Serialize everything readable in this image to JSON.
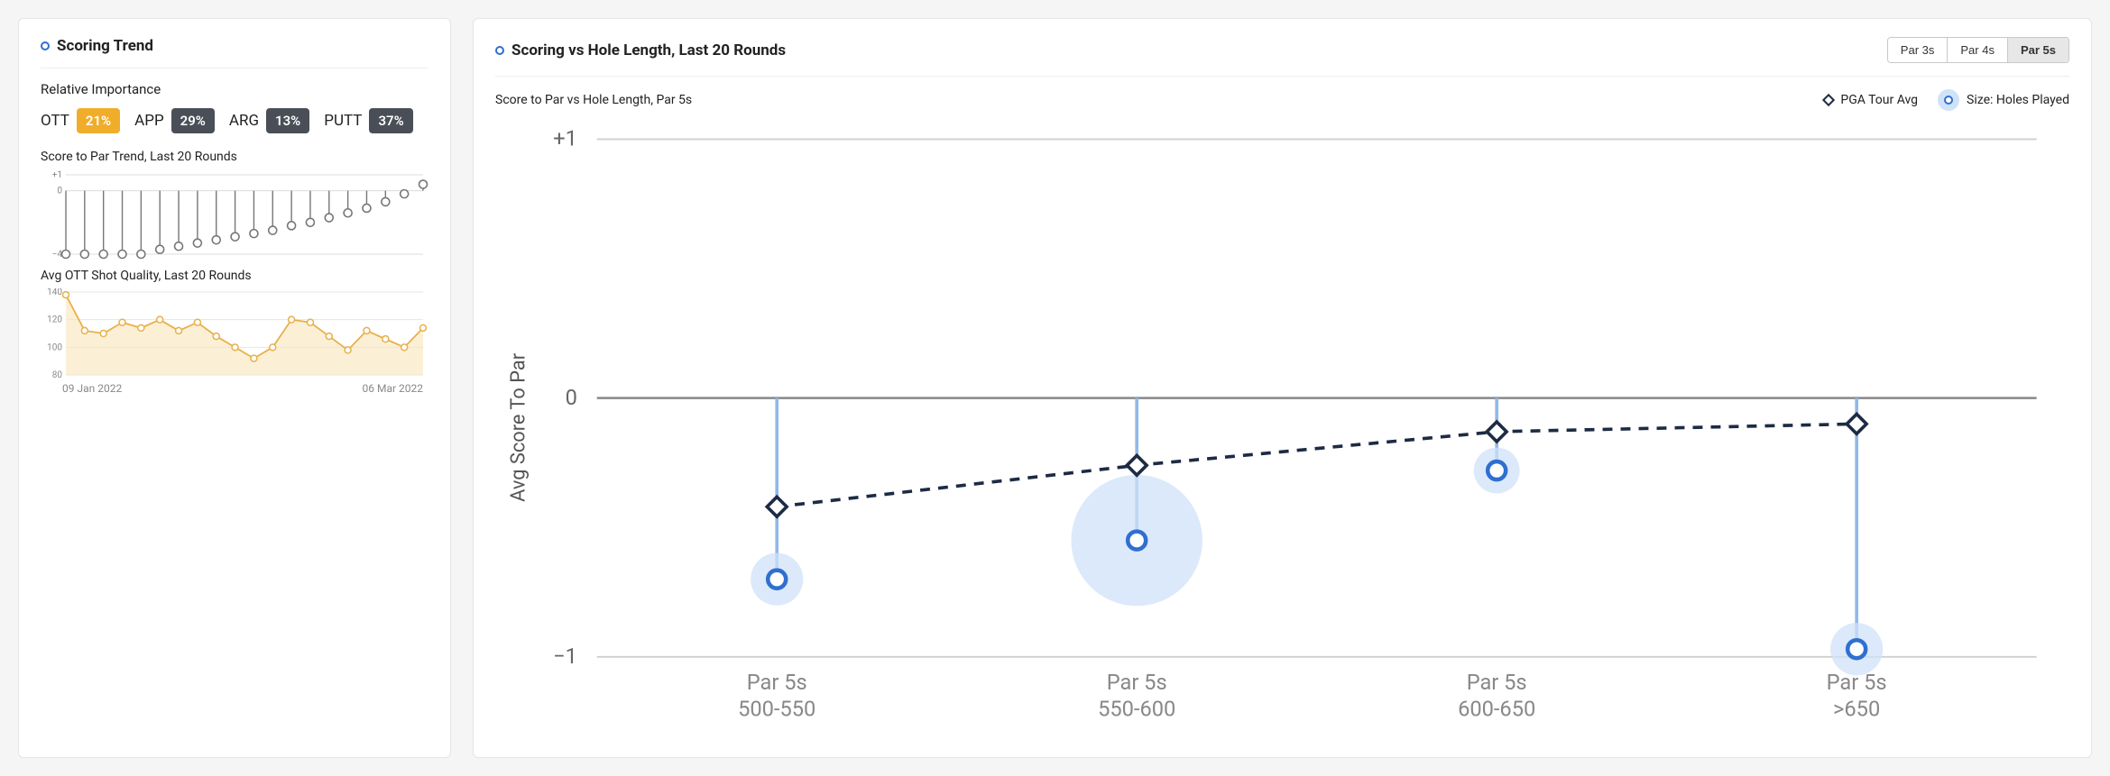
{
  "left": {
    "title": "Scoring Trend",
    "importance_header": "Relative Importance",
    "importance": [
      {
        "label": "OTT",
        "value": "21%",
        "bg": "#f0ad2a",
        "fg": "#ffffff"
      },
      {
        "label": "APP",
        "value": "29%",
        "bg": "#4a4f57",
        "fg": "#ffffff"
      },
      {
        "label": "ARG",
        "value": "13%",
        "bg": "#4a4f57",
        "fg": "#ffffff"
      },
      {
        "label": "PUTT",
        "value": "37%",
        "bg": "#4a4f57",
        "fg": "#ffffff"
      }
    ],
    "trend_chart": {
      "title": "Score to Par Trend, Last 20 Rounds",
      "type": "lollipop",
      "ylim": [
        -4,
        1
      ],
      "yticks": [
        1,
        0,
        -4
      ],
      "ytick_labels": [
        "+1",
        "0",
        "−4"
      ],
      "axis_color": "#888888",
      "grid_color": "#dcdcdc",
      "marker_stroke": "#777777",
      "marker_fill": "#ffffff",
      "marker_r": 4.5,
      "stem_color": "#777777",
      "values": [
        -4,
        -4,
        -4,
        -4,
        -4,
        -3.7,
        -3.5,
        -3.3,
        -3.1,
        -2.9,
        -2.7,
        -2.5,
        -2.2,
        -2.0,
        -1.7,
        -1.4,
        -1.1,
        -0.7,
        -0.2,
        0.4
      ]
    },
    "quality_chart": {
      "title": "Avg OTT Shot Quality, Last 20 Rounds",
      "type": "area-line",
      "ylim": [
        80,
        140
      ],
      "yticks": [
        140,
        120,
        100,
        80
      ],
      "axis_color": "#888888",
      "grid_color": "#e6e6e6",
      "line_color": "#e9b04a",
      "marker_stroke": "#e9b04a",
      "marker_fill": "#ffffff",
      "marker_r": 3.5,
      "fill_color": "#f8e6bb",
      "fill_opacity": 0.6,
      "values": [
        138,
        112,
        110,
        118,
        114,
        120,
        112,
        118,
        108,
        100,
        92,
        100,
        120,
        118,
        108,
        98,
        112,
        106,
        100,
        114
      ]
    },
    "date_start": "09 Jan 2022",
    "date_end": "06 Mar 2022"
  },
  "right": {
    "title": "Scoring vs Hole Length, Last 20 Rounds",
    "tabs": [
      "Par 3s",
      "Par 4s",
      "Par 5s"
    ],
    "active_tab": 2,
    "subtitle": "Score to Par vs Hole Length, Par 5s",
    "legend": {
      "pga": "PGA Tour Avg",
      "size": "Size: Holes Played"
    },
    "chart": {
      "type": "bubble-diamond",
      "y_axis_label": "Avg Score To Par",
      "ylim": [
        -1,
        1
      ],
      "yticks": [
        1,
        0,
        -1
      ],
      "ytick_labels": [
        "+1",
        "0",
        "−1"
      ],
      "grid_color": "#cfcfcf",
      "zero_line_color": "#888888",
      "categories": [
        {
          "line1": "Par 5s",
          "line2": "500-550"
        },
        {
          "line1": "Par 5s",
          "line2": "550-600"
        },
        {
          "line1": "Par 5s",
          "line2": "600-650"
        },
        {
          "line1": "Par 5s",
          "line2": ">650"
        }
      ],
      "stem_color": "#8fb9e8",
      "bubble_fill": "#cfe2f8",
      "bubble_fill_opacity": 0.75,
      "bubble_ring_stroke": "#2f6fd0",
      "bubble_ring_fill": "#ffffff",
      "diamond_stroke": "#1d2b44",
      "diamond_fill": "#ffffff",
      "dash_line_color": "#1d2b44",
      "dash_pattern": "6 5",
      "player": [
        {
          "y": -0.7,
          "size": 16
        },
        {
          "y": -0.55,
          "size": 40
        },
        {
          "y": -0.28,
          "size": 14
        },
        {
          "y": -0.97,
          "size": 16
        }
      ],
      "pga": [
        -0.42,
        -0.26,
        -0.13,
        -0.1
      ]
    }
  }
}
